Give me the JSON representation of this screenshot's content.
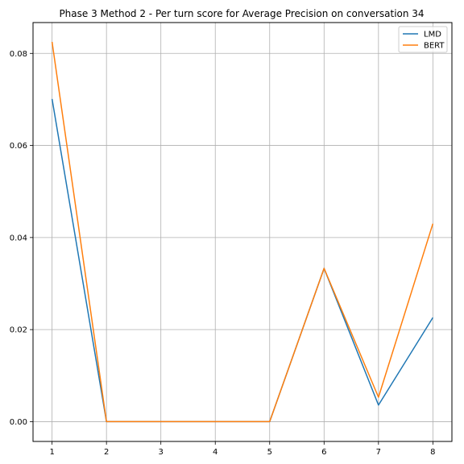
{
  "chart_data": {
    "type": "line",
    "title": "Phase 3 Method 2 - Per turn score for Average Precision on conversation 34",
    "xlabel": "",
    "ylabel": "",
    "x": [
      1,
      2,
      3,
      4,
      5,
      6,
      7,
      8
    ],
    "xticks": [
      1,
      2,
      3,
      4,
      5,
      6,
      7,
      8
    ],
    "yticks": [
      "0.00",
      "0.02",
      "0.04",
      "0.06",
      "0.08"
    ],
    "xlim": [
      0.65,
      8.35
    ],
    "ylim": [
      -0.0043,
      0.0867
    ],
    "grid": true,
    "legend_position": "upper right",
    "series": [
      {
        "name": "LMD",
        "color": "#1f77b4",
        "values": [
          0.0701,
          0.0,
          0.0,
          0.0,
          0.0,
          0.0333,
          0.0036,
          0.0226
        ]
      },
      {
        "name": "BERT",
        "color": "#ff7f0e",
        "values": [
          0.0825,
          0.0,
          0.0,
          0.0,
          0.0,
          0.0333,
          0.0053,
          0.043
        ]
      }
    ]
  }
}
